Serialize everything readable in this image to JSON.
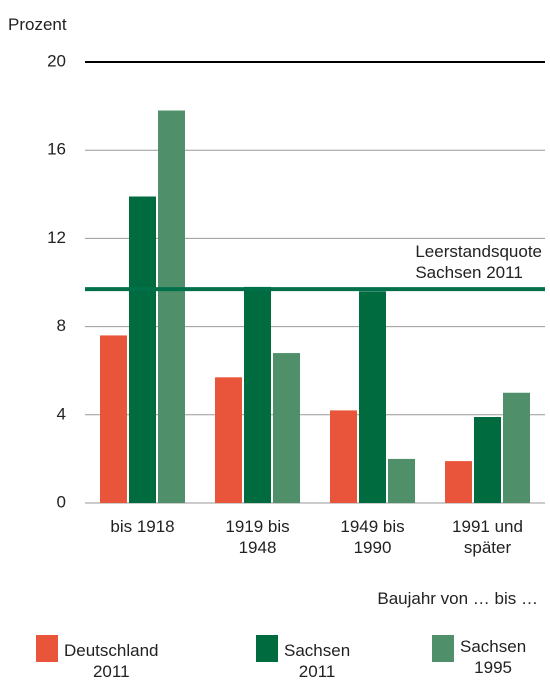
{
  "chart_data": {
    "type": "bar",
    "y_axis_label": "Prozent",
    "x_axis_label": "Baujahr von … bis …",
    "categories": [
      "bis 1918",
      "1919 bis\n1948",
      "1949 bis\n1990",
      "1991 und\nspäter"
    ],
    "series": [
      {
        "name": "Deutschland\n2011",
        "color": "#e8553a",
        "values": [
          7.6,
          5.7,
          4.2,
          1.9
        ]
      },
      {
        "name": "Sachsen\n2011",
        "color": "#006b3f",
        "values": [
          13.9,
          9.8,
          9.6,
          3.9
        ]
      },
      {
        "name": "Sachsen\n1995",
        "color": "#4f8f6a",
        "values": [
          17.8,
          6.8,
          2.0,
          5.0
        ]
      }
    ],
    "reference_line": {
      "value": 9.7,
      "label": "Leerstandsquote\nSachsen 2011",
      "color": "#00704a"
    },
    "ylim": [
      0,
      20
    ],
    "yticks": [
      0,
      4,
      8,
      12,
      16,
      20
    ],
    "grid": true
  }
}
